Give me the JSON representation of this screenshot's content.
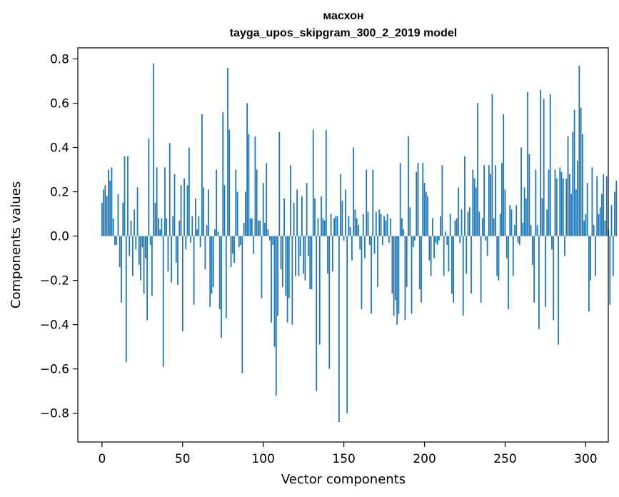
{
  "chart_data": {
    "type": "bar",
    "title": "масхон\ntayga_upos_skipgram_300_2_2019 model",
    "title_lines": [
      "масхон",
      "tayga_upos_skipgram_300_2_2019 model"
    ],
    "xlabel": "Vector components",
    "ylabel": "Components values",
    "xlim": [
      -15,
      314
    ],
    "ylim": [
      -0.93,
      0.85
    ],
    "xticks": [
      0,
      50,
      100,
      150,
      200,
      250,
      300
    ],
    "xtick_labels": [
      "0",
      "50",
      "100",
      "150",
      "200",
      "250",
      "300"
    ],
    "yticks": [
      -0.8,
      -0.6,
      -0.4,
      -0.2,
      0.0,
      0.2,
      0.4,
      0.6,
      0.8
    ],
    "ytick_labels": [
      "−0.8",
      "−0.6",
      "−0.4",
      "−0.2",
      "0.0",
      "0.2",
      "0.4",
      "0.6",
      "0.8"
    ],
    "bar_color": "#1f77b4",
    "grid": false,
    "legend": "none",
    "values": [
      0.15,
      0.21,
      0.23,
      0.18,
      0.3,
      0.25,
      0.31,
      0.08,
      -0.04,
      -0.04,
      0.19,
      -0.14,
      -0.3,
      0.15,
      0.36,
      -0.57,
      0.36,
      -0.09,
      0.07,
      -0.18,
      0.12,
      -0.06,
      0.22,
      -0.13,
      -0.2,
      -0.05,
      -0.26,
      -0.1,
      -0.38,
      0.44,
      -0.04,
      -0.27,
      0.78,
      0.15,
      0.31,
      0.08,
      0.03,
      0.08,
      -0.59,
      0.31,
      0.08,
      -0.16,
      0.42,
      -0.21,
      0.09,
      0.28,
      -0.12,
      -0.22,
      0.07,
      0.23,
      -0.43,
      0.26,
      -0.06,
      0.23,
      0.4,
      -0.03,
      0.09,
      -0.31,
      0.17,
      0.03,
      0.09,
      -0.05,
      0.55,
      0.22,
      -0.15,
      0.05,
      0.21,
      -0.32,
      -0.26,
      -0.23,
      0.03,
      0.3,
      0.02,
      -0.33,
      -0.46,
      0.56,
      0.23,
      -0.37,
      0.76,
      0.48,
      -0.14,
      -0.08,
      -0.12,
      0.3,
      0.2,
      -0.05,
      -0.04,
      -0.62,
      0.06,
      0.2,
      0.6,
      0.46,
      0.08,
      0.08,
      -0.08,
      0.45,
      0.3,
      0.07,
      0.07,
      -0.28,
      0.24,
      0.06,
      0.33,
      0.03,
      -0.02,
      -0.39,
      -0.04,
      -0.5,
      -0.72,
      -0.36,
      0.47,
      -0.15,
      -0.23,
      0.17,
      -0.27,
      -0.39,
      -0.28,
      0.32,
      -0.4,
      0.15,
      -0.18,
      0.21,
      -0.18,
      -0.09,
      0.18,
      -0.17,
      -0.2,
      0.24,
      -0.09,
      -0.24,
      -0.24,
      0.48,
      0.17,
      -0.7,
      0.08,
      -0.49,
      0.18,
      0.08,
      0.07,
      0.48,
      -0.17,
      -0.6,
      0.1,
      -0.16,
      0.08,
      0.09,
      0.09,
      -0.84,
      0.28,
      0.16,
      -0.02,
      0.21,
      -0.8,
      0.09,
      0.04,
      -0.11,
      0.4,
      0.12,
      0.08,
      0.05,
      -0.06,
      -0.33,
      0.1,
      -0.1,
      0.3,
      0.11,
      -0.04,
      -0.35,
      0.3,
      -0.08,
      0.11,
      -0.23,
      0.12,
      0.1,
      -0.04,
      0.09,
      0.07,
      0.1,
      -0.03,
      0.08,
      -0.26,
      -0.36,
      -0.29,
      -0.4,
      -0.35,
      0.33,
      0.08,
      0.03,
      -0.38,
      -0.23,
      0.45,
      0.13,
      -0.35,
      -0.05,
      -0.02,
      0.29,
      0.33,
      -0.24,
      -0.3,
      0.33,
      0.24,
      0.2,
      0.18,
      -0.11,
      -0.18,
      0.08,
      -0.1,
      -0.03,
      -0.04,
      -0.02,
      0.09,
      0.32,
      -0.18,
      0.02,
      -0.04,
      -0.16,
      0.1,
      -0.26,
      -0.3,
      0.07,
      0.08,
      0.22,
      -0.03,
      0.12,
      -0.36,
      0.36,
      -0.17,
      0.11,
      0.13,
      -0.26,
      0.3,
      0.26,
      0.22,
      0.6,
      0.11,
      -0.3,
      0.08,
      0.32,
      -0.02,
      -0.09,
      0.32,
      0.28,
      0.64,
      0.08,
      0.32,
      -0.18,
      -0.2,
      0.1,
      0.33,
      0.55,
      0.21,
      -0.1,
      -0.33,
      0.14,
      0.12,
      -0.18,
      0.05,
      0.14,
      -0.03,
      -0.04,
      0.4,
      0.06,
      0.22,
      0.17,
      0.65,
      0.37,
      0.05,
      -0.13,
      -0.3,
      0.3,
      0.05,
      -0.42,
      0.66,
      0.17,
      0.62,
      -0.32,
      0.12,
      0.3,
      0.64,
      -0.06,
      -0.38,
      0.3,
      0.26,
      -0.49,
      0.31,
      0.29,
      0.26,
      -0.09,
      0.26,
      0.45,
      0.28,
      0.19,
      0.47,
      0.57,
      0.21,
      0.34,
      0.77,
      0.58,
      0.46,
      0.07,
      0.1,
      0.24,
      -0.34,
      -0.2,
      0.31,
      0.05,
      -0.18,
      0.27,
      0.1,
      0.13,
      0.19,
      0.28,
      0.07,
      0.27,
      0.03,
      -0.31,
      0.14,
      -0.18,
      0.2,
      0.25
    ]
  }
}
